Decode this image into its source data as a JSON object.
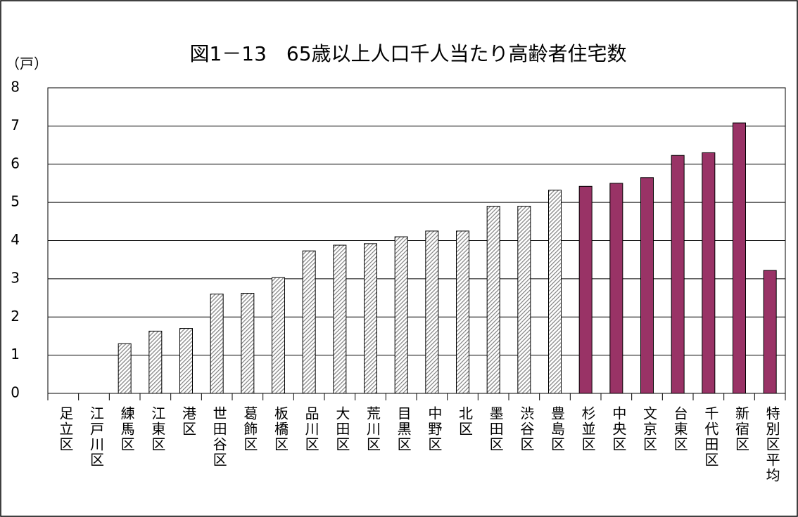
{
  "chart_data": {
    "type": "bar",
    "title": "図1－13　65歳以上人口千人当たり高齢者住宅数",
    "y_label": "（戸）",
    "categories": [
      "足立区",
      "江戸川区",
      "練馬区",
      "江東区",
      "港区",
      "世田谷区",
      "葛飾区",
      "板橋区",
      "品川区",
      "大田区",
      "荒川区",
      "目黒区",
      "中野区",
      "北区",
      "墨田区",
      "渋谷区",
      "豊島区",
      "杉並区",
      "中央区",
      "文京区",
      "台東区",
      "千代田区",
      "新宿区",
      "特別区平均"
    ],
    "values": [
      0,
      0,
      1.3,
      1.63,
      1.7,
      2.6,
      2.62,
      3.03,
      3.73,
      3.88,
      3.92,
      4.1,
      4.25,
      4.25,
      4.9,
      4.9,
      5.32,
      5.42,
      5.5,
      5.65,
      6.23,
      6.3,
      7.08,
      3.22
    ],
    "colors": [
      "#808080",
      "#808080",
      "#808080",
      "#808080",
      "#808080",
      "#808080",
      "#808080",
      "#808080",
      "#808080",
      "#808080",
      "#808080",
      "#808080",
      "#808080",
      "#808080",
      "#808080",
      "#808080",
      "#808080",
      "#993366",
      "#993366",
      "#993366",
      "#993366",
      "#993366",
      "#993366",
      "#993366"
    ],
    "hatched": [
      true,
      true,
      true,
      true,
      true,
      true,
      true,
      true,
      true,
      true,
      true,
      true,
      true,
      true,
      true,
      true,
      true,
      false,
      false,
      false,
      false,
      false,
      false,
      false
    ],
    "ylim": [
      0,
      8
    ],
    "yticks": [
      0,
      1,
      2,
      3,
      4,
      5,
      6,
      7,
      8
    ],
    "grid": true
  }
}
